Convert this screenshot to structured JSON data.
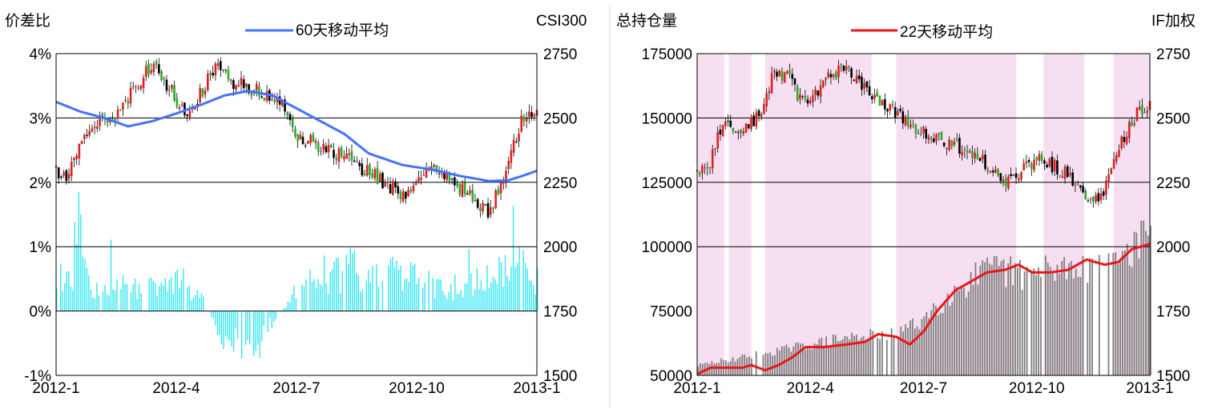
{
  "chart_data": [
    {
      "type": "candlestick+bar+line",
      "left_axis_label": "价差比",
      "right_axis_label": "CSI300",
      "legend": {
        "label": "60天移动平均",
        "color": "#4472ff",
        "placement": "top-center"
      },
      "x_ticks": [
        "2012-1",
        "2012-4",
        "2012-7",
        "2012-10",
        "2013-1"
      ],
      "y_left_ticks": [
        "-1%",
        "0%",
        "1%",
        "2%",
        "3%",
        "4%"
      ],
      "y_left_range": [
        -1,
        4
      ],
      "y_right_ticks": [
        "1500",
        "1750",
        "2000",
        "2250",
        "2500",
        "2750"
      ],
      "y_right_range": [
        1500,
        2750
      ],
      "gridlines_left_at": [
        1,
        2,
        3
      ],
      "bar_color": "#33e6f0",
      "series": [
        {
          "name": "CSI300",
          "kind": "candlestick",
          "anchors": [
            [
              0.0,
              2300
            ],
            [
              0.02,
              2250
            ],
            [
              0.05,
              2400
            ],
            [
              0.08,
              2480
            ],
            [
              0.13,
              2520
            ],
            [
              0.17,
              2640
            ],
            [
              0.2,
              2700
            ],
            [
              0.24,
              2610
            ],
            [
              0.27,
              2510
            ],
            [
              0.3,
              2590
            ],
            [
              0.33,
              2700
            ],
            [
              0.36,
              2640
            ],
            [
              0.4,
              2620
            ],
            [
              0.44,
              2590
            ],
            [
              0.47,
              2560
            ],
            [
              0.5,
              2440
            ],
            [
              0.55,
              2380
            ],
            [
              0.6,
              2350
            ],
            [
              0.65,
              2290
            ],
            [
              0.7,
              2230
            ],
            [
              0.72,
              2200
            ],
            [
              0.75,
              2250
            ],
            [
              0.78,
              2300
            ],
            [
              0.82,
              2260
            ],
            [
              0.86,
              2200
            ],
            [
              0.9,
              2140
            ],
            [
              0.92,
              2220
            ],
            [
              0.95,
              2400
            ],
            [
              0.97,
              2500
            ],
            [
              1.0,
              2550
            ]
          ]
        },
        {
          "name": "价差比",
          "kind": "bar",
          "anchors": [
            [
              0.0,
              0.6
            ],
            [
              0.04,
              0.9
            ],
            [
              0.08,
              0.5
            ],
            [
              0.13,
              0.5
            ],
            [
              0.18,
              0.4
            ],
            [
              0.22,
              0.5
            ],
            [
              0.26,
              0.6
            ],
            [
              0.3,
              0.3
            ],
            [
              0.34,
              -0.4
            ],
            [
              0.38,
              -0.8
            ],
            [
              0.43,
              -0.4
            ],
            [
              0.47,
              0.0
            ],
            [
              0.5,
              0.4
            ],
            [
              0.55,
              0.7
            ],
            [
              0.6,
              0.8
            ],
            [
              0.65,
              0.9
            ],
            [
              0.7,
              0.7
            ],
            [
              0.75,
              0.6
            ],
            [
              0.8,
              0.4
            ],
            [
              0.85,
              0.5
            ],
            [
              0.9,
              0.6
            ],
            [
              0.94,
              0.9
            ],
            [
              0.97,
              0.8
            ],
            [
              1.0,
              0.6
            ]
          ]
        },
        {
          "name": "60天移动平均",
          "kind": "line",
          "anchors": [
            [
              0.0,
              3.25
            ],
            [
              0.05,
              3.1
            ],
            [
              0.1,
              3.0
            ],
            [
              0.15,
              2.87
            ],
            [
              0.2,
              2.95
            ],
            [
              0.25,
              3.07
            ],
            [
              0.3,
              3.2
            ],
            [
              0.35,
              3.35
            ],
            [
              0.4,
              3.42
            ],
            [
              0.45,
              3.35
            ],
            [
              0.5,
              3.15
            ],
            [
              0.55,
              2.95
            ],
            [
              0.6,
              2.75
            ],
            [
              0.65,
              2.45
            ],
            [
              0.72,
              2.27
            ],
            [
              0.78,
              2.2
            ],
            [
              0.84,
              2.1
            ],
            [
              0.9,
              2.02
            ],
            [
              0.94,
              2.03
            ],
            [
              0.97,
              2.1
            ],
            [
              1.0,
              2.18
            ]
          ]
        }
      ]
    },
    {
      "type": "candlestick+bar+line",
      "left_axis_label": "总持仓量",
      "right_axis_label": "IF加权",
      "legend": {
        "label": "22天移动平均",
        "color": "#e81818",
        "placement": "top-center"
      },
      "x_ticks": [
        "2012-1",
        "2012-4",
        "2012-7",
        "2012-10",
        "2013-1"
      ],
      "y_left_ticks": [
        "50000",
        "75000",
        "100000",
        "125000",
        "150000",
        "175000"
      ],
      "y_left_range": [
        50000,
        175000
      ],
      "y_right_ticks": [
        "1500",
        "1750",
        "2000",
        "2250",
        "2500",
        "2750"
      ],
      "y_right_range": [
        1500,
        2750
      ],
      "gridlines_left_at": [
        100000,
        125000,
        150000
      ],
      "bar_color": "#7f7f7f",
      "shaded_x_ranges": [
        [
          0.0,
          0.06
        ],
        [
          0.07,
          0.12
        ],
        [
          0.15,
          0.385
        ],
        [
          0.44,
          0.705
        ],
        [
          0.765,
          0.855
        ],
        [
          0.92,
          1.0
        ]
      ],
      "shade_color": "#f6dff0",
      "series": [
        {
          "name": "IF加权",
          "kind": "candlestick",
          "anchors": [
            [
              0.0,
              2300
            ],
            [
              0.02,
              2280
            ],
            [
              0.04,
              2400
            ],
            [
              0.06,
              2470
            ],
            [
              0.09,
              2450
            ],
            [
              0.12,
              2480
            ],
            [
              0.15,
              2560
            ],
            [
              0.17,
              2680
            ],
            [
              0.2,
              2660
            ],
            [
              0.23,
              2560
            ],
            [
              0.26,
              2600
            ],
            [
              0.3,
              2670
            ],
            [
              0.33,
              2700
            ],
            [
              0.37,
              2610
            ],
            [
              0.4,
              2580
            ],
            [
              0.45,
              2500
            ],
            [
              0.5,
              2450
            ],
            [
              0.55,
              2400
            ],
            [
              0.6,
              2380
            ],
            [
              0.64,
              2320
            ],
            [
              0.68,
              2250
            ],
            [
              0.7,
              2260
            ],
            [
              0.72,
              2300
            ],
            [
              0.76,
              2340
            ],
            [
              0.8,
              2300
            ],
            [
              0.84,
              2250
            ],
            [
              0.87,
              2160
            ],
            [
              0.9,
              2220
            ],
            [
              0.92,
              2360
            ],
            [
              0.95,
              2450
            ],
            [
              0.97,
              2520
            ],
            [
              1.0,
              2560
            ]
          ]
        },
        {
          "name": "总持仓量",
          "kind": "bar",
          "anchors": [
            [
              0.0,
              54000
            ],
            [
              0.06,
              56000
            ],
            [
              0.12,
              58000
            ],
            [
              0.18,
              60000
            ],
            [
              0.24,
              62000
            ],
            [
              0.3,
              64000
            ],
            [
              0.36,
              66000
            ],
            [
              0.42,
              66000
            ],
            [
              0.48,
              70000
            ],
            [
              0.54,
              80000
            ],
            [
              0.6,
              88000
            ],
            [
              0.66,
              92000
            ],
            [
              0.72,
              90000
            ],
            [
              0.78,
              92000
            ],
            [
              0.84,
              94000
            ],
            [
              0.9,
              96000
            ],
            [
              0.95,
              100000
            ],
            [
              1.0,
              105000
            ]
          ]
        },
        {
          "name": "22天移动平均",
          "kind": "line",
          "anchors": [
            [
              0.0,
              50500
            ],
            [
              0.03,
              53000
            ],
            [
              0.06,
              53000
            ],
            [
              0.1,
              53000
            ],
            [
              0.12,
              54000
            ],
            [
              0.15,
              52000
            ],
            [
              0.18,
              54000
            ],
            [
              0.21,
              57000
            ],
            [
              0.24,
              61000
            ],
            [
              0.28,
              61000
            ],
            [
              0.33,
              62000
            ],
            [
              0.37,
              63000
            ],
            [
              0.4,
              66000
            ],
            [
              0.44,
              65000
            ],
            [
              0.47,
              62000
            ],
            [
              0.5,
              67000
            ],
            [
              0.53,
              75000
            ],
            [
              0.57,
              83000
            ],
            [
              0.6,
              86000
            ],
            [
              0.64,
              90000
            ],
            [
              0.68,
              91000
            ],
            [
              0.71,
              93000
            ],
            [
              0.74,
              90000
            ],
            [
              0.78,
              90000
            ],
            [
              0.82,
              91000
            ],
            [
              0.86,
              95000
            ],
            [
              0.9,
              93000
            ],
            [
              0.93,
              94000
            ],
            [
              0.96,
              99000
            ],
            [
              1.0,
              101000
            ]
          ]
        }
      ]
    }
  ]
}
